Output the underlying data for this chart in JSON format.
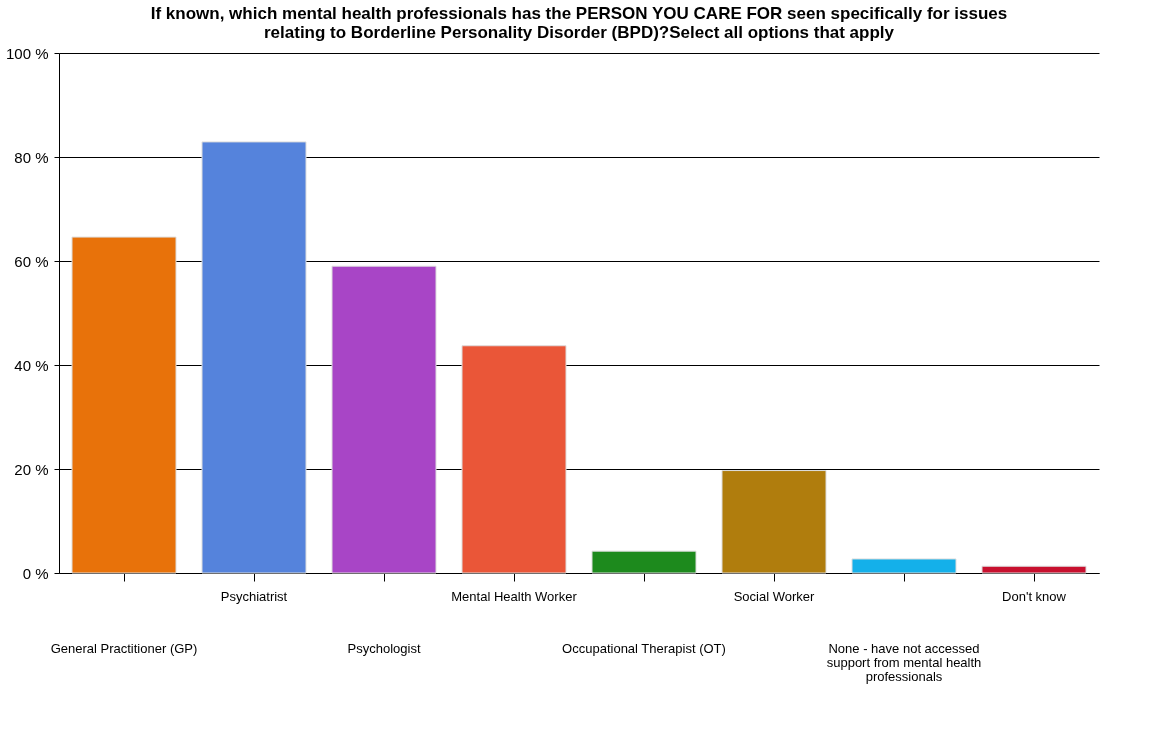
{
  "chart_data": {
    "type": "bar",
    "title": "If known, which mental health professionals has the PERSON YOU CARE FOR seen specifically for issues relating to Borderline Personality Disorder (BPD)?Select all options that apply",
    "categories": [
      "General Practitioner (GP)",
      "Psychiatrist",
      "Psychologist",
      "Mental Health Worker",
      "Occupational Therapist (OT)",
      "Social Worker",
      "None - have not accessed support from mental health professionals",
      "Don't know"
    ],
    "values": [
      64.6,
      82.9,
      59.0,
      43.7,
      4.2,
      19.7,
      2.7,
      1.3
    ],
    "colors": [
      "#e8720a",
      "#5583dc",
      "#a845c6",
      "#ea5638",
      "#1d8a1d",
      "#b07d0d",
      "#14b0ea",
      "#c8102e"
    ],
    "ylim": [
      0,
      100
    ],
    "yticks": [
      {
        "value": 0,
        "label": "0 %"
      },
      {
        "value": 20,
        "label": "20 %"
      },
      {
        "value": 40,
        "label": "40 %"
      },
      {
        "value": 60,
        "label": "60 %"
      },
      {
        "value": 80,
        "label": "80 %"
      },
      {
        "value": 100,
        "label": "100 %"
      }
    ],
    "grid": "y"
  }
}
